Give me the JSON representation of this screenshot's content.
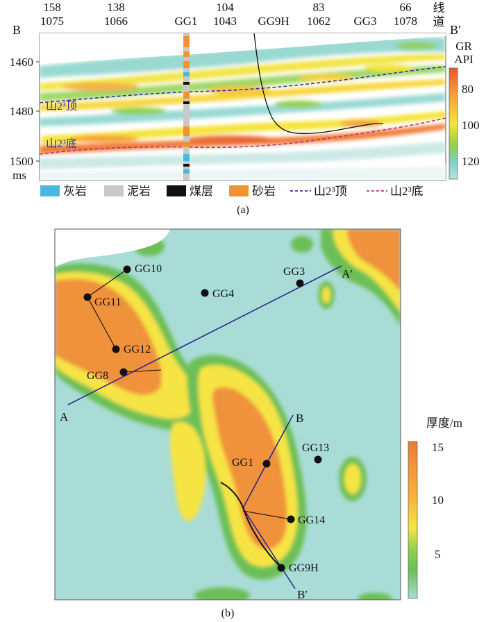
{
  "panel_a": {
    "left_label": "B",
    "right_label": "B′",
    "trace_numbers": [
      {
        "top": "158",
        "bottom": "1075"
      },
      {
        "top": "138",
        "bottom": "1066"
      },
      {
        "top": "",
        "bottom": "GG1"
      },
      {
        "top": "104",
        "bottom": "1043"
      },
      {
        "top": "",
        "bottom": "GG9H"
      },
      {
        "top": "83",
        "bottom": "1062"
      },
      {
        "top": "",
        "bottom": "GG3"
      },
      {
        "top": "66",
        "bottom": "1078"
      }
    ],
    "line_label_1": "线",
    "line_label_2": "道",
    "y_ticks": [
      "1460",
      "1480",
      "1500"
    ],
    "y_unit": "ms",
    "horizon_top_label": "山2³顶",
    "horizon_bottom_label": "山2³底",
    "colorbar": {
      "title_1": "GR",
      "title_2": "API",
      "ticks": [
        "80",
        "100",
        "120"
      ]
    },
    "legend": [
      {
        "label": "灰岩",
        "color": "#4ab8de",
        "kind": "box"
      },
      {
        "label": "泥岩",
        "color": "#c8c8c8",
        "kind": "box"
      },
      {
        "label": "煤层",
        "color": "#111111",
        "kind": "box"
      },
      {
        "label": "砂岩",
        "color": "#f29332",
        "kind": "box"
      },
      {
        "label": "山2³顶",
        "color": "#3a2fa0",
        "kind": "line"
      },
      {
        "label": "山2³底",
        "color": "#b4307e",
        "kind": "line"
      }
    ],
    "caption": "(a)"
  },
  "panel_b": {
    "wells": [
      "GG10",
      "GG11",
      "GG12",
      "GG8",
      "GG4",
      "GG3",
      "GG1",
      "GG13",
      "GG14",
      "GG9H"
    ],
    "section_ends": {
      "A": "A",
      "A_prime": "A′",
      "B": "B",
      "B_prime": "B′"
    },
    "colorbar": {
      "title": "厚度/m",
      "ticks": [
        "15",
        "10",
        "5"
      ]
    },
    "caption": "(b)"
  }
}
